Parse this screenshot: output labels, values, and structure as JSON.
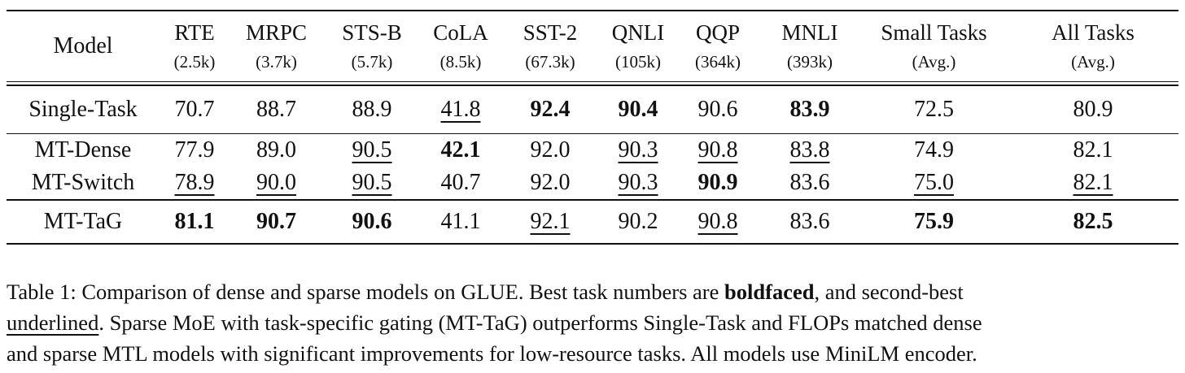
{
  "table": {
    "columns": [
      {
        "name": "Model",
        "sub": ""
      },
      {
        "name": "RTE",
        "sub": "(2.5k)"
      },
      {
        "name": "MRPC",
        "sub": "(3.7k)"
      },
      {
        "name": "STS-B",
        "sub": "(5.7k)"
      },
      {
        "name": "CoLA",
        "sub": "(8.5k)"
      },
      {
        "name": "SST-2",
        "sub": "(67.3k)"
      },
      {
        "name": "QNLI",
        "sub": "(105k)"
      },
      {
        "name": "QQP",
        "sub": "(364k)"
      },
      {
        "name": "MNLI",
        "sub": "(393k)"
      },
      {
        "name": "Small Tasks",
        "sub": "(Avg.)"
      },
      {
        "name": "All Tasks",
        "sub": "(Avg.)"
      }
    ],
    "rows": [
      {
        "model": "Single-Task",
        "values": [
          "70.7",
          "88.7",
          "88.9",
          "41.8",
          "92.4",
          "90.4",
          "90.6",
          "83.9",
          "72.5",
          "80.9"
        ],
        "bold": [
          false,
          false,
          false,
          false,
          true,
          true,
          false,
          true,
          false,
          false
        ],
        "underline": [
          false,
          false,
          false,
          true,
          false,
          false,
          false,
          false,
          false,
          false
        ]
      },
      {
        "model": "MT-Dense",
        "values": [
          "77.9",
          "89.0",
          "90.5",
          "42.1",
          "92.0",
          "90.3",
          "90.8",
          "83.8",
          "74.9",
          "82.1"
        ],
        "bold": [
          false,
          false,
          false,
          true,
          false,
          false,
          false,
          false,
          false,
          false
        ],
        "underline": [
          false,
          false,
          true,
          false,
          false,
          true,
          true,
          true,
          false,
          false
        ]
      },
      {
        "model": "MT-Switch",
        "values": [
          "78.9",
          "90.0",
          "90.5",
          "40.7",
          "92.0",
          "90.3",
          "90.9",
          "83.6",
          "75.0",
          "82.1"
        ],
        "bold": [
          false,
          false,
          false,
          false,
          false,
          false,
          true,
          false,
          false,
          false
        ],
        "underline": [
          true,
          true,
          true,
          false,
          false,
          true,
          false,
          false,
          true,
          true
        ]
      },
      {
        "model": "MT-TaG",
        "model_bold": true,
        "values": [
          "81.1",
          "90.7",
          "90.6",
          "41.1",
          "92.1",
          "90.2",
          "90.8",
          "83.6",
          "75.9",
          "82.5"
        ],
        "bold": [
          true,
          true,
          true,
          false,
          false,
          false,
          false,
          false,
          true,
          true
        ],
        "underline": [
          false,
          false,
          false,
          false,
          true,
          false,
          true,
          false,
          false,
          false
        ]
      }
    ]
  },
  "caption": {
    "line1_a": "Table 1: Comparison of dense and sparse models on GLUE. Best task numbers are ",
    "line1_bold": "boldfaced",
    "line1_b": ", and second-best",
    "line2_underlined": "underlined",
    "line2_b": ". Sparse MoE with task-specific gating (MT-TaG) outperforms Single-Task and FLOPs matched dense",
    "line3": "and sparse MTL models with significant improvements for low-resource tasks. All models use MiniLM encoder."
  }
}
